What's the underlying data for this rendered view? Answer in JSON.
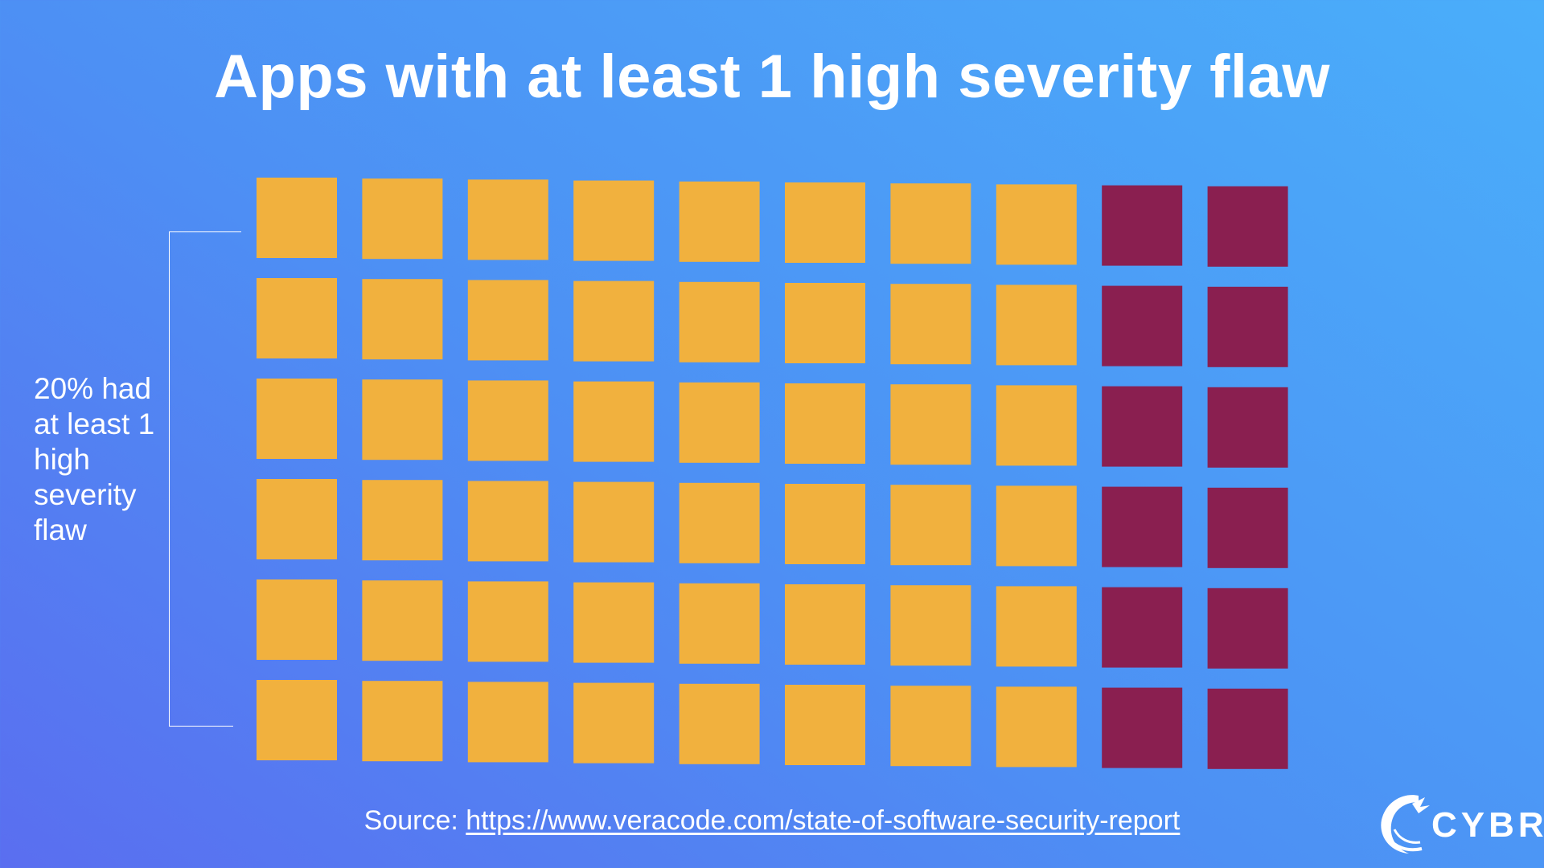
{
  "chart_data": {
    "type": "waffle",
    "title": "Apps with at least 1 high severity flaw",
    "rows": 6,
    "cols": 10,
    "total": 60,
    "highlighted_count": 12,
    "highlighted_percent": 20,
    "annotation": "20% had at least 1 high severity flaw",
    "colors": {
      "base": "#F1B13E",
      "highlight": "#8A1F50"
    }
  },
  "source": {
    "prefix": "Source: ",
    "link_text": "https://www.veracode.com/state-of-software-security-report"
  },
  "brand": {
    "name": "CYBR",
    "logo_icon": "dragon-icon"
  }
}
